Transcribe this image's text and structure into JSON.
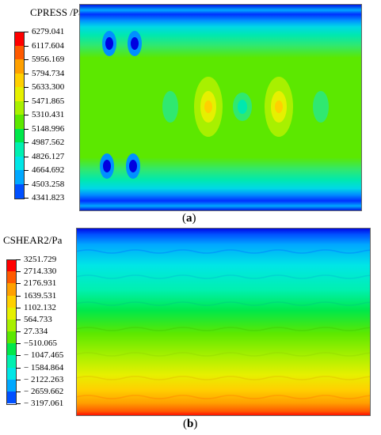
{
  "panel_a": {
    "legend_title": "CPRESS /Pa",
    "legend_values": [
      "6279.041",
      "6117.604",
      "5956.169",
      "5794.734",
      "5633.300",
      "5471.865",
      "5310.431",
      "5148.996",
      "4987.562",
      "4826.127",
      "4664.692",
      "4503.258",
      "4341.823"
    ],
    "caption_open": "(",
    "caption_letter": "a",
    "caption_close": ")"
  },
  "panel_b": {
    "legend_title": "CSHEAR2/Pa",
    "legend_values": [
      "3251.729",
      "2714.330",
      "2176.931",
      "1639.531",
      "1102.132",
      "564.733",
      "27.334",
      "−510.065",
      "− 1047.465",
      "− 1584.864",
      "− 2122.263",
      "− 2659.662",
      "− 3197.061"
    ],
    "caption_open": "(",
    "caption_letter": "b",
    "caption_close": ")"
  },
  "colormap": [
    "#ff0000",
    "#ff5a00",
    "#ffa000",
    "#ffd000",
    "#e6f000",
    "#a8f000",
    "#5ce800",
    "#00e84a",
    "#00f0b0",
    "#00e6e6",
    "#00a8ff",
    "#0050ff",
    "#0000e0"
  ]
}
